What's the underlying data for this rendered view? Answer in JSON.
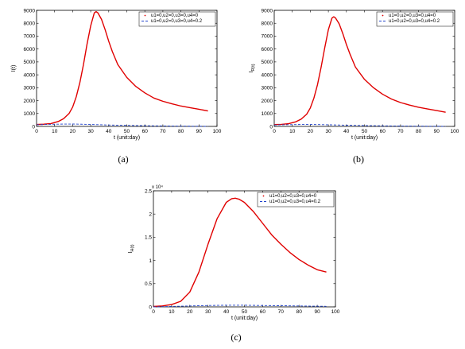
{
  "chart_data": [
    {
      "type": "line",
      "caption": "(a)",
      "xlabel": "t (unit:day)",
      "ylabel": "I(t)",
      "ylabel_sub": "",
      "multiplier": "",
      "xlim": [
        0,
        100
      ],
      "ylim": [
        0,
        9000
      ],
      "xticks": [
        "0",
        "10",
        "20",
        "30",
        "40",
        "50",
        "60",
        "70",
        "80",
        "90",
        "100"
      ],
      "yticks": [
        "0",
        "1000",
        "2000",
        "3000",
        "4000",
        "5000",
        "6000",
        "7000",
        "8000",
        "9000"
      ],
      "legend_position": "top-right",
      "series": [
        {
          "name": "u1=0,u2=0,u3=0,u4=0",
          "color": "#e00000",
          "style": "solid",
          "x": [
            0,
            4,
            8,
            12,
            15,
            18,
            20,
            22,
            24,
            26,
            28,
            30,
            32,
            33,
            34,
            36,
            38,
            40,
            42,
            45,
            50,
            55,
            60,
            65,
            70,
            75,
            80,
            85,
            90,
            95
          ],
          "y": [
            150,
            170,
            220,
            380,
            600,
            1000,
            1500,
            2300,
            3400,
            4800,
            6400,
            7800,
            8800,
            8900,
            8800,
            8300,
            7500,
            6600,
            5800,
            4800,
            3800,
            3100,
            2600,
            2200,
            1950,
            1750,
            1580,
            1450,
            1330,
            1200
          ]
        },
        {
          "name": "u1=0,u2=0,u3=0,u4=0.2",
          "color": "#2244cc",
          "style": "dashed",
          "x": [
            0,
            5,
            10,
            15,
            20,
            25,
            30,
            40,
            50,
            60,
            70,
            80,
            90,
            95
          ],
          "y": [
            130,
            150,
            170,
            180,
            185,
            170,
            150,
            110,
            80,
            55,
            35,
            20,
            10,
            5
          ]
        }
      ]
    },
    {
      "type": "line",
      "caption": "(b)",
      "xlabel": "t (unit:day)",
      "ylabel": "I",
      "ylabel_sub": "R(t)",
      "multiplier": "",
      "xlim": [
        0,
        100
      ],
      "ylim": [
        0,
        9000
      ],
      "xticks": [
        "0",
        "10",
        "20",
        "30",
        "40",
        "50",
        "60",
        "70",
        "80",
        "90",
        "100"
      ],
      "yticks": [
        "0",
        "1000",
        "2000",
        "3000",
        "4000",
        "5000",
        "6000",
        "7000",
        "8000",
        "9000"
      ],
      "legend_position": "top-right",
      "series": [
        {
          "name": "u1=0,u2=0,u3=0,u4=0",
          "color": "#e00000",
          "style": "solid",
          "x": [
            0,
            4,
            8,
            12,
            15,
            18,
            20,
            22,
            24,
            26,
            28,
            30,
            32,
            33,
            34,
            36,
            38,
            40,
            42,
            45,
            50,
            55,
            60,
            65,
            70,
            75,
            80,
            85,
            90,
            95
          ],
          "y": [
            140,
            160,
            210,
            360,
            570,
            950,
            1430,
            2200,
            3250,
            4600,
            6100,
            7500,
            8400,
            8500,
            8400,
            7950,
            7200,
            6350,
            5600,
            4600,
            3650,
            3000,
            2500,
            2120,
            1850,
            1650,
            1480,
            1350,
            1230,
            1100
          ]
        },
        {
          "name": "u1=0,u2=0,u3=0,u4=0.2",
          "color": "#2244cc",
          "style": "dashed",
          "x": [
            0,
            5,
            10,
            15,
            20,
            25,
            30,
            40,
            50,
            60,
            70,
            80,
            90,
            95
          ],
          "y": [
            110,
            125,
            140,
            150,
            150,
            140,
            125,
            95,
            65,
            45,
            30,
            18,
            10,
            5
          ]
        }
      ]
    },
    {
      "type": "line",
      "caption": "(c)",
      "xlabel": "t (unit:day)",
      "ylabel": "I",
      "ylabel_sub": "H(t)",
      "multiplier": "x 10⁴",
      "xlim": [
        0,
        100
      ],
      "ylim": [
        0,
        2.5
      ],
      "xticks": [
        "0",
        "10",
        "20",
        "30",
        "40",
        "50",
        "60",
        "70",
        "80",
        "90",
        "100"
      ],
      "yticks": [
        "0",
        "0.5",
        "1",
        "1.5",
        "2",
        "2.5"
      ],
      "legend_position": "top-right",
      "series": [
        {
          "name": "u1=0,u2=0,u3=0,u4=0",
          "color": "#e00000",
          "style": "solid",
          "x": [
            0,
            5,
            10,
            15,
            20,
            25,
            30,
            35,
            40,
            43,
            45,
            47,
            50,
            55,
            60,
            65,
            70,
            75,
            80,
            85,
            90,
            95
          ],
          "y": [
            0.01,
            0.02,
            0.05,
            0.12,
            0.32,
            0.75,
            1.35,
            1.9,
            2.25,
            2.33,
            2.34,
            2.32,
            2.25,
            2.05,
            1.8,
            1.55,
            1.35,
            1.17,
            1.02,
            0.9,
            0.8,
            0.75
          ]
        },
        {
          "name": "u1=0,u2=0,u3=0,u4=0.2",
          "color": "#2244cc",
          "style": "dashed",
          "x": [
            0,
            10,
            20,
            30,
            40,
            50,
            60,
            70,
            80,
            90,
            95
          ],
          "y": [
            0.0,
            0.01,
            0.02,
            0.03,
            0.035,
            0.035,
            0.03,
            0.025,
            0.02,
            0.015,
            0.012
          ]
        }
      ]
    }
  ]
}
